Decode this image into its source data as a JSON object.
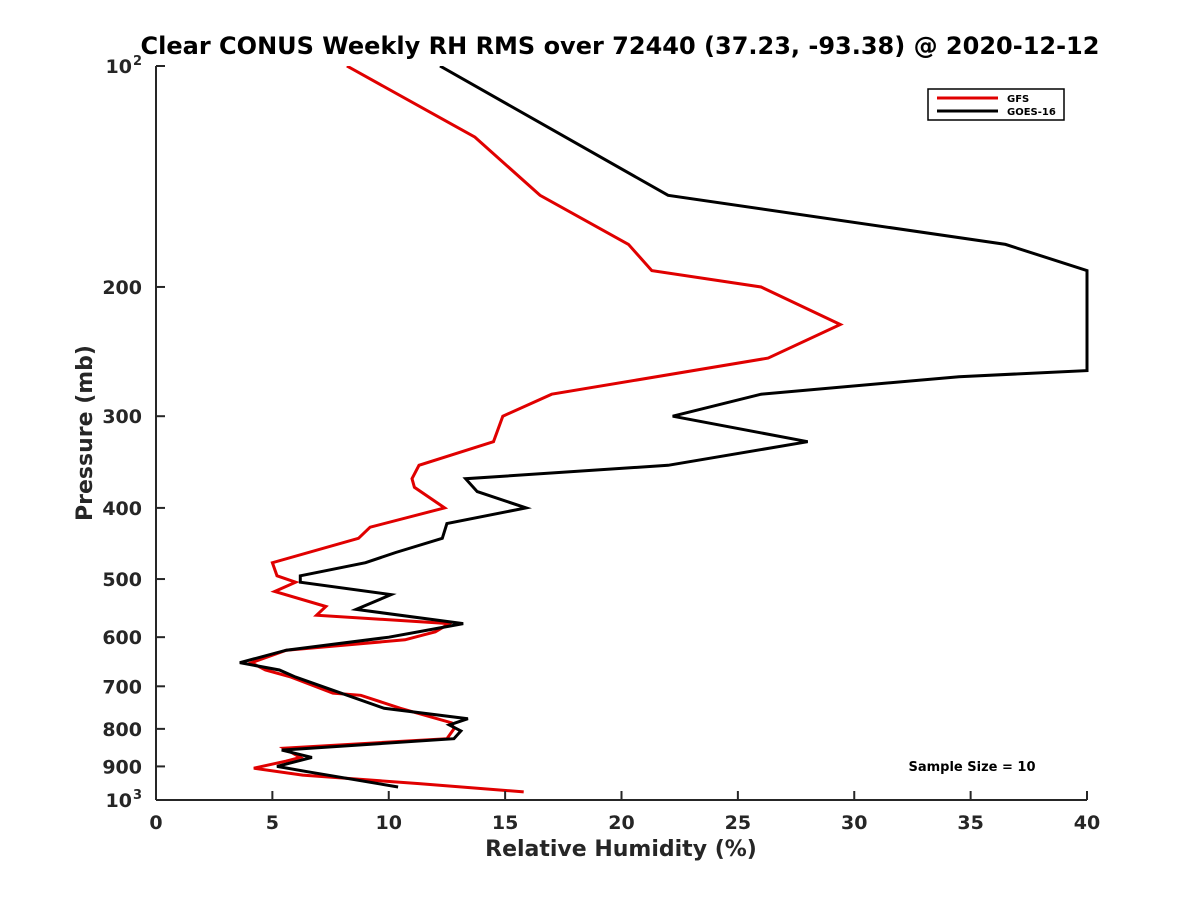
{
  "chart_data": {
    "type": "line",
    "title": "Clear CONUS Weekly RH RMS over 72440 (37.23, -93.38) @ 2020-12-12",
    "xlabel": "Relative Humidity (%)",
    "ylabel": "Pressure (mb)",
    "xlim": [
      0,
      40
    ],
    "ylim": [
      100,
      1000
    ],
    "y_scale": "log",
    "y_reversed": true,
    "grid": false,
    "legend_position": "top-right",
    "x_ticks": [
      "0",
      "5",
      "10",
      "15",
      "20",
      "25",
      "30",
      "35",
      "40"
    ],
    "y_ticks": [
      {
        "value": 100,
        "label": "10",
        "sup": "2"
      },
      {
        "value": 200,
        "label": "200",
        "sup": ""
      },
      {
        "value": 300,
        "label": "300",
        "sup": ""
      },
      {
        "value": 400,
        "label": "400",
        "sup": ""
      },
      {
        "value": 500,
        "label": "500",
        "sup": ""
      },
      {
        "value": 600,
        "label": "600",
        "sup": ""
      },
      {
        "value": 700,
        "label": "700",
        "sup": ""
      },
      {
        "value": 800,
        "label": "800",
        "sup": ""
      },
      {
        "value": 900,
        "label": "900",
        "sup": ""
      },
      {
        "value": 1000,
        "label": "10",
        "sup": "3"
      }
    ],
    "annotation": "Sample Size = 10",
    "series": [
      {
        "name": "GFS",
        "color": "#e00000",
        "points": [
          [
            8.2,
            100
          ],
          [
            13.7,
            125
          ],
          [
            16.5,
            150
          ],
          [
            20.3,
            175
          ],
          [
            21.3,
            190
          ],
          [
            26.0,
            200
          ],
          [
            29.4,
            225
          ],
          [
            26.3,
            250
          ],
          [
            17.0,
            280
          ],
          [
            14.9,
            300
          ],
          [
            14.5,
            325
          ],
          [
            11.3,
            350
          ],
          [
            11.0,
            365
          ],
          [
            11.1,
            375
          ],
          [
            12.4,
            400
          ],
          [
            9.2,
            425
          ],
          [
            8.7,
            440
          ],
          [
            5.0,
            475
          ],
          [
            5.2,
            495
          ],
          [
            6.0,
            505
          ],
          [
            5.1,
            520
          ],
          [
            7.3,
            545
          ],
          [
            6.9,
            560
          ],
          [
            12.6,
            575
          ],
          [
            12.0,
            590
          ],
          [
            10.7,
            605
          ],
          [
            5.6,
            625
          ],
          [
            4.1,
            650
          ],
          [
            4.7,
            665
          ],
          [
            5.8,
            680
          ],
          [
            7.6,
            715
          ],
          [
            8.8,
            720
          ],
          [
            10.5,
            750
          ],
          [
            12.7,
            785
          ],
          [
            12.8,
            800
          ],
          [
            12.5,
            825
          ],
          [
            5.5,
            850
          ],
          [
            6.2,
            875
          ],
          [
            5.6,
            885
          ],
          [
            4.2,
            905
          ],
          [
            6.3,
            925
          ],
          [
            11.3,
            950
          ],
          [
            15.8,
            975
          ]
        ]
      },
      {
        "name": "GOES-16",
        "color": "#000000",
        "points": [
          [
            12.2,
            100
          ],
          [
            22.0,
            150
          ],
          [
            36.5,
            175
          ],
          [
            40.0,
            190
          ],
          [
            40.0,
            260
          ],
          [
            34.5,
            265
          ],
          [
            26.0,
            280
          ],
          [
            22.2,
            300
          ],
          [
            28.0,
            325
          ],
          [
            22.0,
            350
          ],
          [
            13.3,
            365
          ],
          [
            13.8,
            380
          ],
          [
            15.9,
            400
          ],
          [
            12.5,
            420
          ],
          [
            12.3,
            440
          ],
          [
            10.3,
            460
          ],
          [
            9.0,
            475
          ],
          [
            6.2,
            495
          ],
          [
            6.2,
            505
          ],
          [
            10.1,
            525
          ],
          [
            8.6,
            550
          ],
          [
            13.2,
            575
          ],
          [
            10.0,
            600
          ],
          [
            5.6,
            625
          ],
          [
            3.6,
            650
          ],
          [
            5.3,
            665
          ],
          [
            6.0,
            680
          ],
          [
            9.8,
            750
          ],
          [
            13.4,
            775
          ],
          [
            12.6,
            790
          ],
          [
            13.1,
            805
          ],
          [
            12.8,
            825
          ],
          [
            5.4,
            855
          ],
          [
            6.7,
            875
          ],
          [
            5.2,
            900
          ],
          [
            6.5,
            915
          ],
          [
            10.4,
            960
          ]
        ]
      }
    ]
  }
}
